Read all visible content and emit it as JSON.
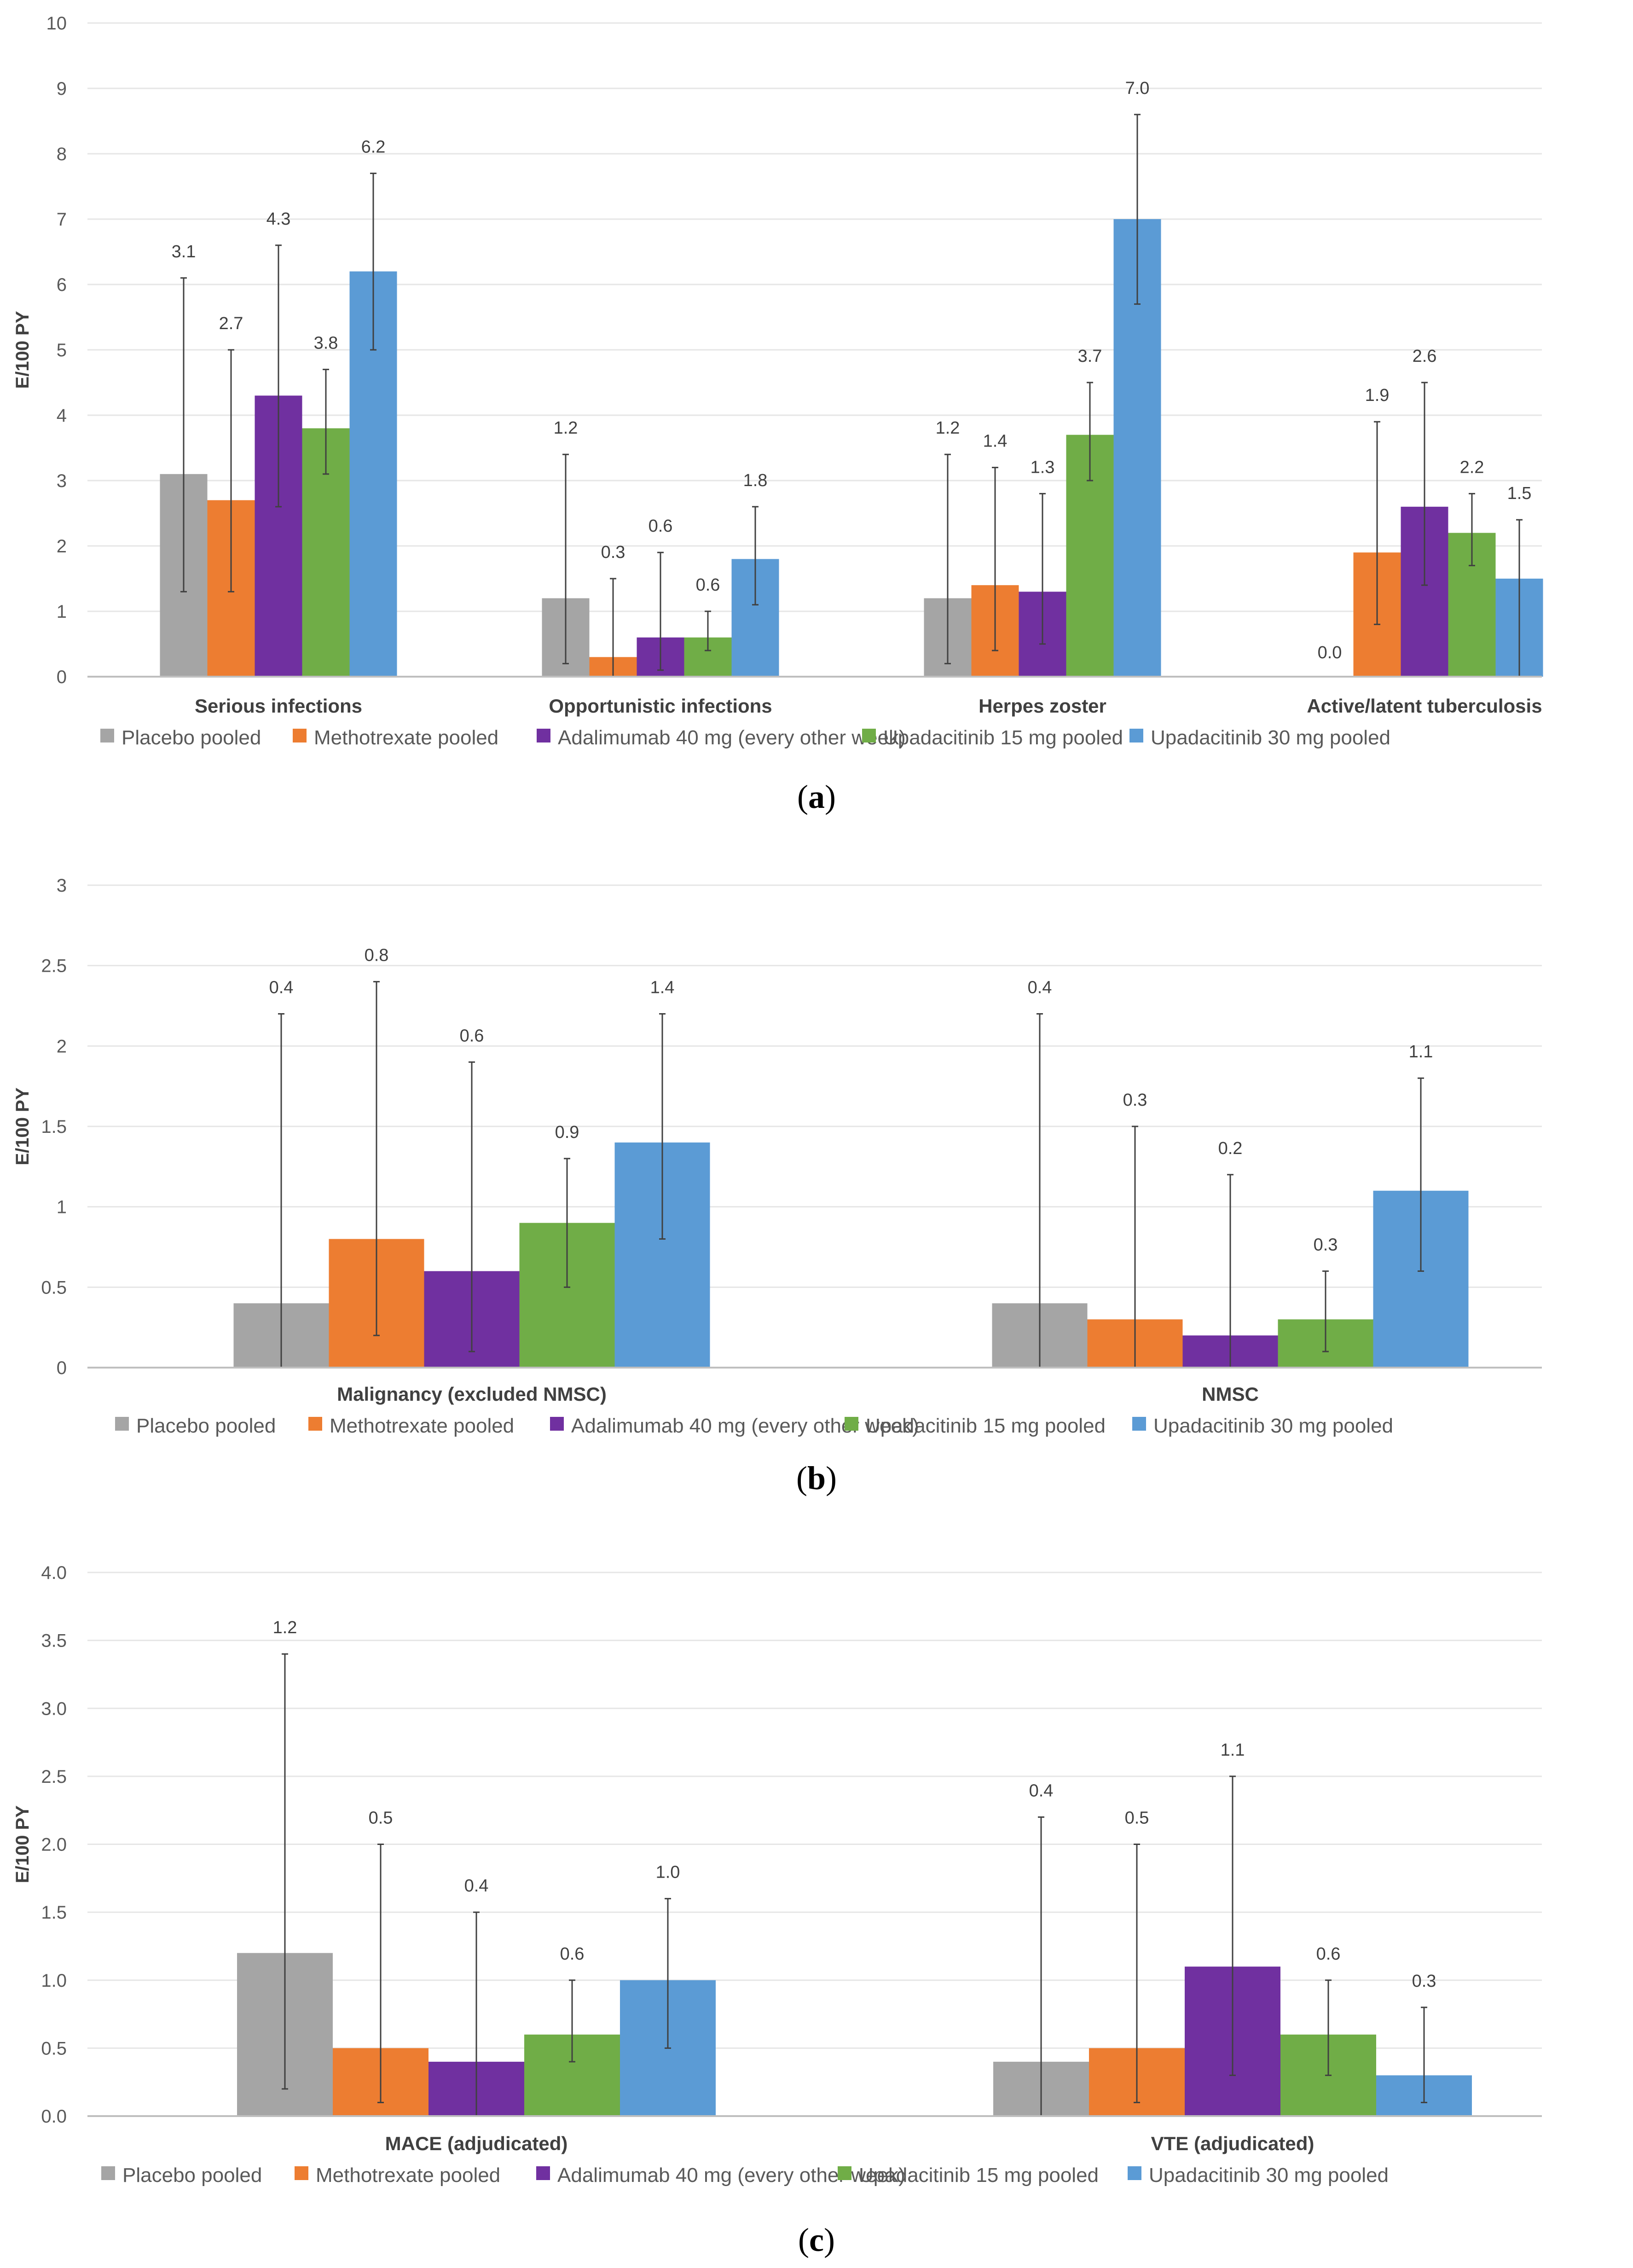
{
  "legend": [
    {
      "name": "Placebo pooled",
      "color": "#A5A5A5"
    },
    {
      "name": "Methotrexate pooled",
      "color": "#ED7D31"
    },
    {
      "name": "Adalimumab 40 mg  (every other week)",
      "color": "#7030A0"
    },
    {
      "name": "Upadacitinib 15 mg pooled",
      "color": "#70AD47"
    },
    {
      "name": "Upadacitinib 30 mg pooled",
      "color": "#5B9BD5"
    }
  ],
  "chart_data": [
    {
      "panel": "a",
      "type": "bar",
      "ylabel": "E/100 PY",
      "ylim": [
        0,
        10
      ],
      "yticks": [
        "0",
        "1",
        "2",
        "3",
        "4",
        "5",
        "6",
        "7",
        "8",
        "9",
        "10"
      ],
      "categories": [
        "Serious infections",
        "Opportunistic infections",
        "Herpes zoster",
        "Active/latent tuberculosis"
      ],
      "series": [
        {
          "name": "Placebo pooled",
          "values": [
            3.1,
            1.2,
            1.2,
            0.0
          ],
          "labels": [
            "3.1",
            "1.2",
            "1.2",
            "0.0"
          ],
          "err_low": [
            1.3,
            0.2,
            0.2,
            null
          ],
          "err_high": [
            6.1,
            3.4,
            3.4,
            null
          ]
        },
        {
          "name": "Methotrexate pooled",
          "values": [
            2.7,
            0.3,
            1.4,
            1.9
          ],
          "labels": [
            "2.7",
            "0.3",
            "1.4",
            "1.9"
          ],
          "err_low": [
            1.3,
            0.0,
            0.4,
            0.8
          ],
          "err_high": [
            5.0,
            1.5,
            3.2,
            3.9
          ]
        },
        {
          "name": "Adalimumab 40 mg  (every other week)",
          "values": [
            4.3,
            0.6,
            1.3,
            2.6
          ],
          "labels": [
            "4.3",
            "0.6",
            "1.3",
            "2.6"
          ],
          "err_low": [
            2.6,
            0.1,
            0.5,
            1.4
          ],
          "err_high": [
            6.6,
            1.9,
            2.8,
            4.5
          ]
        },
        {
          "name": "Upadacitinib 15 mg pooled",
          "values": [
            3.8,
            0.6,
            3.7,
            2.2
          ],
          "labels": [
            "3.8",
            "0.6",
            "3.7",
            "2.2"
          ],
          "err_low": [
            3.1,
            0.4,
            3.0,
            1.7
          ],
          "err_high": [
            4.7,
            1.0,
            4.5,
            2.8
          ]
        },
        {
          "name": "Upadacitinib 30 mg pooled",
          "values": [
            6.2,
            1.8,
            7.0,
            1.5
          ],
          "labels": [
            "6.2",
            "1.8",
            "7.0",
            "1.5"
          ],
          "err_low": [
            5.0,
            1.1,
            5.7,
            0.0
          ],
          "err_high": [
            7.7,
            2.6,
            8.6,
            2.4
          ]
        }
      ],
      "caption": "(a)"
    },
    {
      "panel": "b",
      "type": "bar",
      "ylabel": "E/100 PY",
      "ylim": [
        0,
        3
      ],
      "yticks": [
        "0",
        "0.5",
        "1",
        "1.5",
        "2",
        "2.5",
        "3"
      ],
      "categories": [
        "Malignancy (excluded NMSC)",
        "NMSC"
      ],
      "series": [
        {
          "name": "Placebo pooled",
          "values": [
            0.4,
            0.4
          ],
          "labels": [
            "0.4",
            "0.4"
          ],
          "err_low": [
            0.0,
            0.0
          ],
          "err_high": [
            2.2,
            2.2
          ]
        },
        {
          "name": "Methotrexate pooled",
          "values": [
            0.8,
            0.3
          ],
          "labels": [
            "0.8",
            "0.3"
          ],
          "err_low": [
            0.2,
            0.0
          ],
          "err_high": [
            2.4,
            1.5
          ]
        },
        {
          "name": "Adalimumab 40 mg  (every other week)",
          "values": [
            0.6,
            0.2
          ],
          "labels": [
            "0.6",
            "0.2"
          ],
          "err_low": [
            0.1,
            0.0
          ],
          "err_high": [
            1.9,
            1.2
          ]
        },
        {
          "name": "Upadacitinib 15 mg pooled",
          "values": [
            0.9,
            0.3
          ],
          "labels": [
            "0.9",
            "0.3"
          ],
          "err_low": [
            0.5,
            0.1
          ],
          "err_high": [
            1.3,
            0.6
          ]
        },
        {
          "name": "Upadacitinib 30 mg pooled",
          "values": [
            1.4,
            1.1
          ],
          "labels": [
            "1.4",
            "1.1"
          ],
          "err_low": [
            0.8,
            0.6
          ],
          "err_high": [
            2.2,
            1.8
          ]
        }
      ],
      "caption": "(b)"
    },
    {
      "panel": "c",
      "type": "bar",
      "ylabel": "E/100 PY",
      "ylim": [
        0,
        4
      ],
      "yticks": [
        "0.0",
        "0.5",
        "1.0",
        "1.5",
        "2.0",
        "2.5",
        "3.0",
        "3.5",
        "4.0"
      ],
      "categories": [
        "MACE (adjudicated)",
        "VTE (adjudicated)"
      ],
      "series": [
        {
          "name": "Placebo pooled",
          "values": [
            1.2,
            0.4
          ],
          "labels": [
            "1.2",
            "0.4"
          ],
          "err_low": [
            0.2,
            0.0
          ],
          "err_high": [
            3.4,
            2.2
          ]
        },
        {
          "name": "Methotrexate pooled",
          "values": [
            0.5,
            0.5
          ],
          "labels": [
            "0.5",
            "0.5"
          ],
          "err_low": [
            0.1,
            0.1
          ],
          "err_high": [
            2.0,
            2.0
          ]
        },
        {
          "name": "Adalimumab 40 mg  (every other week)",
          "values": [
            0.4,
            1.1
          ],
          "labels": [
            "0.4",
            "1.1"
          ],
          "err_low": [
            0.0,
            0.3
          ],
          "err_high": [
            1.5,
            2.5
          ]
        },
        {
          "name": "Upadacitinib 15 mg pooled",
          "values": [
            0.6,
            0.6
          ],
          "labels": [
            "0.6",
            "0.6"
          ],
          "err_low": [
            0.4,
            0.3
          ],
          "err_high": [
            1.0,
            1.0
          ]
        },
        {
          "name": "Upadacitinib 30 mg pooled",
          "values": [
            1.0,
            0.3
          ],
          "labels": [
            "1.0",
            "0.3"
          ],
          "err_low": [
            0.5,
            0.1
          ],
          "err_high": [
            1.6,
            0.8
          ]
        }
      ],
      "caption": "(c)"
    }
  ]
}
